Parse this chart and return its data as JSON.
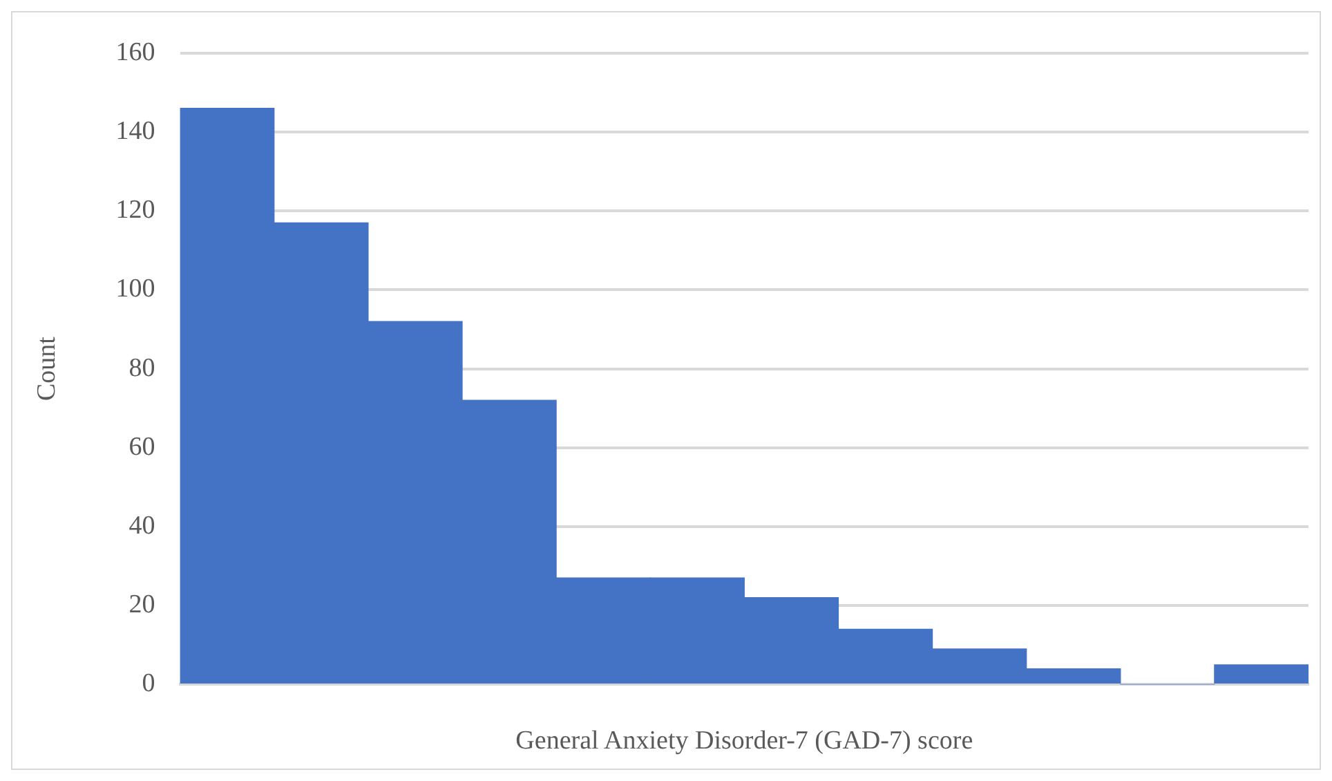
{
  "chart_data": {
    "type": "bar",
    "xlabel": "General Anxiety Disorder-7 (GAD-7) score",
    "ylabel": "Count",
    "categories": [
      null,
      null,
      null,
      null,
      null,
      null,
      null,
      null,
      null,
      null,
      null,
      null
    ],
    "values": [
      146,
      117,
      92,
      72,
      27,
      27,
      22,
      14,
      9,
      4,
      0,
      5
    ],
    "color": "#4472c4",
    "ylim": [
      0,
      160
    ],
    "yticks": [
      0,
      20,
      40,
      60,
      80,
      100,
      120,
      140,
      160
    ],
    "grid": "y",
    "tick_labels": "y"
  }
}
